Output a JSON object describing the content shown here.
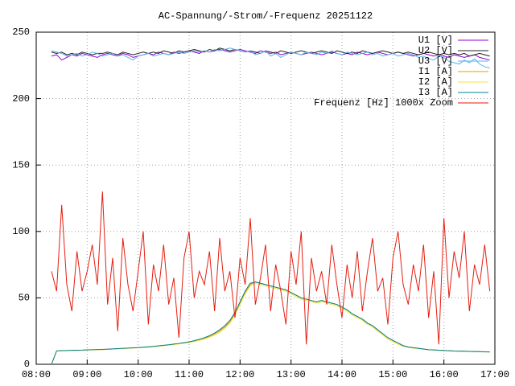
{
  "chart_data": {
    "type": "line",
    "title": "AC-Spannung/-Strom/-Frequenz 20251122",
    "x": [
      8.3,
      8.4,
      8.5,
      8.6,
      8.7,
      8.8,
      8.9,
      9.0,
      9.1,
      9.2,
      9.3,
      9.4,
      9.5,
      9.6,
      9.7,
      9.8,
      9.9,
      10.0,
      10.1,
      10.2,
      10.3,
      10.4,
      10.5,
      10.6,
      10.7,
      10.8,
      10.9,
      11.0,
      11.1,
      11.2,
      11.3,
      11.4,
      11.5,
      11.6,
      11.7,
      11.8,
      11.9,
      12.0,
      12.1,
      12.2,
      12.3,
      12.4,
      12.5,
      12.6,
      12.7,
      12.8,
      12.9,
      13.0,
      13.1,
      13.2,
      13.3,
      13.4,
      13.5,
      13.6,
      13.7,
      13.8,
      13.9,
      14.0,
      14.1,
      14.2,
      14.3,
      14.4,
      14.5,
      14.6,
      14.7,
      14.8,
      14.9,
      15.0,
      15.1,
      15.2,
      15.3,
      15.4,
      15.5,
      15.6,
      15.7,
      15.8,
      15.9,
      16.0,
      16.1,
      16.2,
      16.3,
      16.4,
      16.5,
      16.6,
      16.7,
      16.8,
      16.9
    ],
    "series": [
      {
        "name": "U1 [V]",
        "color": "#9400d3",
        "values": [
          232,
          233,
          229,
          231,
          233,
          232,
          234,
          233,
          232,
          231,
          233,
          234,
          233,
          232,
          234,
          233,
          231,
          232,
          233,
          234,
          233,
          235,
          234,
          233,
          235,
          234,
          235,
          236,
          235,
          234,
          236,
          235,
          236,
          237,
          236,
          235,
          236,
          237,
          236,
          235,
          234,
          236,
          235,
          234,
          235,
          233,
          234,
          235,
          234,
          233,
          234,
          235,
          234,
          233,
          234,
          235,
          234,
          233,
          234,
          233,
          235,
          234,
          233,
          234,
          235,
          234,
          233,
          234,
          235,
          234,
          233,
          232,
          233,
          234,
          233,
          232,
          233,
          232,
          231,
          233,
          232,
          231,
          232,
          233,
          231,
          230,
          229
        ]
      },
      {
        "name": "U2 [V]",
        "color": "#202020",
        "values": [
          235,
          234,
          235,
          233,
          234,
          233,
          235,
          234,
          233,
          234,
          234,
          235,
          234,
          233,
          235,
          234,
          233,
          234,
          235,
          234,
          235,
          234,
          236,
          235,
          234,
          236,
          235,
          236,
          237,
          236,
          235,
          237,
          236,
          238,
          237,
          236,
          237,
          236,
          235,
          236,
          235,
          234,
          236,
          235,
          234,
          236,
          235,
          234,
          235,
          236,
          235,
          234,
          235,
          236,
          235,
          234,
          236,
          235,
          234,
          235,
          234,
          236,
          235,
          234,
          235,
          236,
          235,
          234,
          235,
          234,
          235,
          234,
          233,
          234,
          235,
          234,
          233,
          234,
          233,
          234,
          233,
          234,
          232,
          233,
          234,
          233,
          232
        ]
      },
      {
        "name": "U3 [V]",
        "color": "#56b4e9",
        "values": [
          236,
          235,
          234,
          232,
          233,
          234,
          232,
          233,
          235,
          234,
          232,
          233,
          234,
          232,
          233,
          231,
          229,
          232,
          233,
          234,
          232,
          233,
          234,
          233,
          234,
          235,
          234,
          235,
          236,
          235,
          236,
          235,
          237,
          236,
          237,
          238,
          237,
          236,
          235,
          236,
          233,
          234,
          236,
          232,
          234,
          231,
          233,
          235,
          234,
          233,
          235,
          234,
          233,
          235,
          234,
          236,
          234,
          233,
          235,
          234,
          233,
          234,
          235,
          233,
          234,
          232,
          233,
          234,
          232,
          233,
          234,
          233,
          231,
          232,
          230,
          229,
          232,
          231,
          228,
          227,
          226,
          229,
          227,
          230,
          226,
          224,
          223
        ]
      },
      {
        "name": "I1 [A]",
        "color": "#e69f00",
        "values": [
          0,
          10,
          10.2,
          10.3,
          10.4,
          10.5,
          10.6,
          10.8,
          10.9,
          11,
          11.1,
          11.3,
          11.5,
          11.7,
          11.9,
          12.1,
          12.3,
          12.5,
          12.8,
          13.1,
          13.4,
          13.8,
          14.2,
          14.6,
          15.1,
          15.6,
          16.2,
          16.8,
          17.6,
          18.5,
          19.6,
          21,
          22.8,
          25,
          28,
          32,
          38,
          46,
          54,
          60,
          62,
          61,
          60,
          59,
          58,
          57,
          56,
          54,
          52,
          50,
          49,
          48,
          47,
          48,
          47,
          46,
          45,
          43,
          41,
          38,
          36,
          34,
          31,
          29,
          26,
          23,
          20,
          18,
          16,
          14,
          13,
          12.5,
          12,
          11.5,
          11,
          10.8,
          10.6,
          10.4,
          10.2,
          10,
          9.9,
          9.8,
          9.7,
          9.6,
          9.5,
          9.4,
          9.3
        ]
      },
      {
        "name": "I2 [A]",
        "color": "#f0e442",
        "values": [
          0,
          10,
          10.1,
          10.2,
          10.3,
          10.4,
          10.5,
          10.7,
          10.8,
          10.9,
          11,
          11.2,
          11.4,
          11.6,
          11.8,
          12,
          12.2,
          12.4,
          12.6,
          12.9,
          13.2,
          13.6,
          14,
          14.4,
          14.8,
          15.3,
          15.8,
          16.4,
          17.1,
          18,
          19,
          20.3,
          22,
          24,
          27,
          31,
          37,
          45,
          53,
          59,
          61,
          60,
          59,
          58,
          57,
          56,
          55,
          53,
          51,
          49,
          48,
          47,
          46,
          47,
          46,
          45,
          44,
          42,
          40,
          37,
          35,
          33,
          30,
          28,
          25,
          22,
          19,
          17,
          15,
          13.5,
          12.7,
          12.2,
          11.8,
          11.3,
          10.9,
          10.7,
          10.5,
          10.3,
          10.1,
          9.9,
          9.8,
          9.7,
          9.6,
          9.5,
          9.4,
          9.3,
          9.2
        ]
      },
      {
        "name": "I3 [A]",
        "color": "#00808a",
        "values": [
          0,
          10.1,
          10.3,
          10.4,
          10.5,
          10.6,
          10.7,
          10.9,
          11,
          11.1,
          11.2,
          11.4,
          11.6,
          11.8,
          12,
          12.2,
          12.4,
          12.6,
          12.9,
          13.2,
          13.5,
          13.9,
          14.3,
          14.7,
          15.2,
          15.7,
          16.3,
          16.9,
          17.8,
          18.8,
          20,
          21.5,
          23.5,
          26,
          29,
          33,
          39,
          47,
          55,
          61,
          62,
          61,
          60,
          59,
          58,
          57,
          56,
          54,
          52,
          50,
          49,
          48,
          47,
          48,
          47,
          46,
          45,
          43,
          41,
          38,
          36,
          34,
          31,
          29,
          26,
          23,
          20,
          18,
          16,
          14,
          13,
          12.5,
          12,
          11.5,
          11,
          10.8,
          10.6,
          10.4,
          10.2,
          10,
          9.9,
          9.8,
          9.7,
          9.6,
          9.5,
          9.4,
          9.3
        ]
      },
      {
        "name": "Frequenz [Hz] 1000x Zoom",
        "color": "#e51e10",
        "values": [
          70,
          55,
          120,
          60,
          40,
          85,
          55,
          70,
          90,
          60,
          130,
          45,
          80,
          25,
          95,
          60,
          40,
          70,
          100,
          30,
          75,
          55,
          90,
          45,
          65,
          20,
          80,
          100,
          50,
          70,
          60,
          85,
          40,
          95,
          55,
          70,
          35,
          80,
          60,
          110,
          45,
          65,
          90,
          40,
          75,
          55,
          30,
          85,
          60,
          100,
          15,
          80,
          55,
          70,
          45,
          90,
          60,
          35,
          75,
          50,
          85,
          40,
          70,
          95,
          55,
          65,
          30,
          80,
          100,
          60,
          45,
          75,
          55,
          90,
          35,
          70,
          15,
          110,
          50,
          85,
          65,
          100,
          40,
          75,
          60,
          90,
          55
        ]
      }
    ],
    "xlim": [
      8,
      17
    ],
    "ylim": [
      0,
      250
    ],
    "xticks": [
      {
        "value": 8,
        "label": "08:00"
      },
      {
        "value": 9,
        "label": "09:00"
      },
      {
        "value": 10,
        "label": "10:00"
      },
      {
        "value": 11,
        "label": "11:00"
      },
      {
        "value": 12,
        "label": "12:00"
      },
      {
        "value": 13,
        "label": "13:00"
      },
      {
        "value": 14,
        "label": "14:00"
      },
      {
        "value": 15,
        "label": "15:00"
      },
      {
        "value": 16,
        "label": "16:00"
      },
      {
        "value": 17,
        "label": "17:00"
      }
    ],
    "yticks": [
      0,
      50,
      100,
      150,
      200,
      250
    ],
    "grid": true,
    "legend": "top-right"
  }
}
